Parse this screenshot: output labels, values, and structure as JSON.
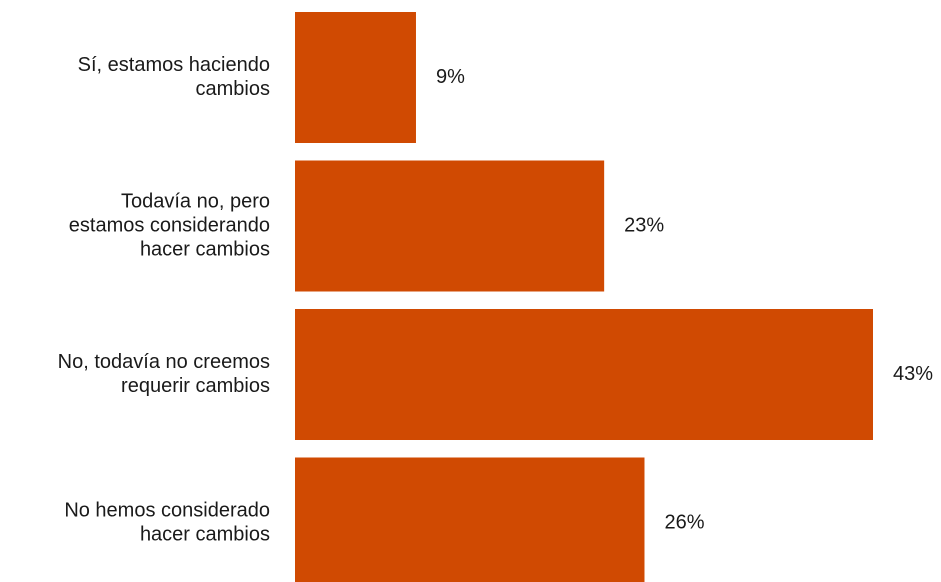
{
  "chart_data": {
    "type": "bar",
    "orientation": "horizontal",
    "categories": [
      "Sí, estamos haciendo cambios",
      "Todavía no, pero estamos considerando hacer cambios",
      "No, todavía no creemos requerir cambios",
      "No hemos considerado hacer cambios"
    ],
    "category_lines": [
      [
        "Sí, estamos haciendo",
        "cambios"
      ],
      [
        "Todavía no, pero",
        "estamos considerando",
        "hacer cambios"
      ],
      [
        "No, todavía no creemos",
        "requerir cambios"
      ],
      [
        "No hemos considerado",
        "hacer cambios"
      ]
    ],
    "values": [
      9,
      23,
      43,
      26
    ],
    "value_labels": [
      "9%",
      "23%",
      "43%",
      "26%"
    ],
    "unit": "%",
    "bar_color": "#D04A02",
    "grid": false,
    "legend": "none"
  }
}
